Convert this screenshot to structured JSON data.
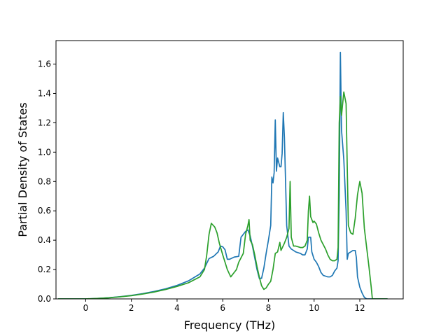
{
  "chart_data": {
    "type": "line",
    "xlabel": "Frequency (THz)",
    "ylabel": "Partial Density of States",
    "xlim": [
      -1.3,
      13.9
    ],
    "ylim": [
      0.0,
      1.76
    ],
    "x_ticks": [
      0,
      2,
      4,
      6,
      8,
      10,
      12
    ],
    "x_tick_labels": [
      "0",
      "2",
      "4",
      "6",
      "8",
      "10",
      "12"
    ],
    "y_ticks": [
      0.0,
      0.2,
      0.4,
      0.6,
      0.8,
      1.0,
      1.2,
      1.4,
      1.6
    ],
    "y_tick_labels": [
      "0.0",
      "0.2",
      "0.4",
      "0.6",
      "0.8",
      "1.0",
      "1.2",
      "1.4",
      "1.6"
    ],
    "grid": false,
    "series": [
      {
        "color": "#1f77b4",
        "points": [
          [
            -1.2,
            0.0
          ],
          [
            0.0,
            0.0
          ],
          [
            0.5,
            0.003
          ],
          [
            1.0,
            0.008
          ],
          [
            1.5,
            0.015
          ],
          [
            2.0,
            0.024
          ],
          [
            2.5,
            0.036
          ],
          [
            3.0,
            0.051
          ],
          [
            3.5,
            0.069
          ],
          [
            4.0,
            0.092
          ],
          [
            4.5,
            0.123
          ],
          [
            5.0,
            0.17
          ],
          [
            5.2,
            0.21
          ],
          [
            5.4,
            0.275
          ],
          [
            5.6,
            0.29
          ],
          [
            5.8,
            0.32
          ],
          [
            5.9,
            0.36
          ],
          [
            6.0,
            0.355
          ],
          [
            6.1,
            0.335
          ],
          [
            6.2,
            0.27
          ],
          [
            6.3,
            0.27
          ],
          [
            6.5,
            0.285
          ],
          [
            6.7,
            0.29
          ],
          [
            6.8,
            0.42
          ],
          [
            6.9,
            0.44
          ],
          [
            7.0,
            0.46
          ],
          [
            7.1,
            0.47
          ],
          [
            7.2,
            0.43
          ],
          [
            7.3,
            0.36
          ],
          [
            7.4,
            0.28
          ],
          [
            7.5,
            0.2
          ],
          [
            7.6,
            0.14
          ],
          [
            7.7,
            0.14
          ],
          [
            7.8,
            0.21
          ],
          [
            7.9,
            0.31
          ],
          [
            8.0,
            0.4
          ],
          [
            8.1,
            0.5
          ],
          [
            8.15,
            0.83
          ],
          [
            8.2,
            0.79
          ],
          [
            8.25,
            0.86
          ],
          [
            8.3,
            1.22
          ],
          [
            8.35,
            0.87
          ],
          [
            8.4,
            0.96
          ],
          [
            8.5,
            0.9
          ],
          [
            8.55,
            0.9
          ],
          [
            8.6,
            0.99
          ],
          [
            8.65,
            1.27
          ],
          [
            8.7,
            1.1
          ],
          [
            8.75,
            0.8
          ],
          [
            8.8,
            0.5
          ],
          [
            8.9,
            0.36
          ],
          [
            9.0,
            0.34
          ],
          [
            9.2,
            0.32
          ],
          [
            9.4,
            0.31
          ],
          [
            9.5,
            0.3
          ],
          [
            9.6,
            0.3
          ],
          [
            9.7,
            0.34
          ],
          [
            9.75,
            0.42
          ],
          [
            9.85,
            0.42
          ],
          [
            9.9,
            0.32
          ],
          [
            10.0,
            0.27
          ],
          [
            10.1,
            0.25
          ],
          [
            10.2,
            0.22
          ],
          [
            10.3,
            0.18
          ],
          [
            10.4,
            0.16
          ],
          [
            10.5,
            0.155
          ],
          [
            10.6,
            0.15
          ],
          [
            10.7,
            0.15
          ],
          [
            10.8,
            0.16
          ],
          [
            10.9,
            0.19
          ],
          [
            11.0,
            0.21
          ],
          [
            11.05,
            0.26
          ],
          [
            11.1,
            0.7
          ],
          [
            11.15,
            1.68
          ],
          [
            11.2,
            1.15
          ],
          [
            11.3,
            0.95
          ],
          [
            11.4,
            0.6
          ],
          [
            11.45,
            0.27
          ],
          [
            11.5,
            0.31
          ],
          [
            11.6,
            0.32
          ],
          [
            11.7,
            0.33
          ],
          [
            11.8,
            0.33
          ],
          [
            11.85,
            0.28
          ],
          [
            11.9,
            0.15
          ],
          [
            12.0,
            0.08
          ],
          [
            12.1,
            0.04
          ],
          [
            12.2,
            0.01
          ],
          [
            12.3,
            0.0
          ],
          [
            13.2,
            0.0
          ]
        ]
      },
      {
        "color": "#2ca02c",
        "points": [
          [
            -1.2,
            0.0
          ],
          [
            0.0,
            0.0
          ],
          [
            0.5,
            0.003
          ],
          [
            1.0,
            0.007
          ],
          [
            1.5,
            0.014
          ],
          [
            2.0,
            0.022
          ],
          [
            2.5,
            0.033
          ],
          [
            3.0,
            0.047
          ],
          [
            3.5,
            0.064
          ],
          [
            4.0,
            0.085
          ],
          [
            4.5,
            0.11
          ],
          [
            5.0,
            0.15
          ],
          [
            5.2,
            0.2
          ],
          [
            5.3,
            0.3
          ],
          [
            5.4,
            0.44
          ],
          [
            5.5,
            0.515
          ],
          [
            5.65,
            0.49
          ],
          [
            5.75,
            0.45
          ],
          [
            5.85,
            0.38
          ],
          [
            6.0,
            0.3
          ],
          [
            6.2,
            0.2
          ],
          [
            6.35,
            0.15
          ],
          [
            6.5,
            0.18
          ],
          [
            6.6,
            0.2
          ],
          [
            6.7,
            0.25
          ],
          [
            6.8,
            0.28
          ],
          [
            6.9,
            0.31
          ],
          [
            7.0,
            0.44
          ],
          [
            7.1,
            0.5
          ],
          [
            7.15,
            0.54
          ],
          [
            7.2,
            0.4
          ],
          [
            7.3,
            0.37
          ],
          [
            7.4,
            0.3
          ],
          [
            7.5,
            0.22
          ],
          [
            7.6,
            0.15
          ],
          [
            7.7,
            0.09
          ],
          [
            7.8,
            0.065
          ],
          [
            7.9,
            0.075
          ],
          [
            8.0,
            0.1
          ],
          [
            8.1,
            0.12
          ],
          [
            8.2,
            0.2
          ],
          [
            8.3,
            0.31
          ],
          [
            8.4,
            0.32
          ],
          [
            8.5,
            0.385
          ],
          [
            8.55,
            0.33
          ],
          [
            8.7,
            0.38
          ],
          [
            8.8,
            0.42
          ],
          [
            8.9,
            0.48
          ],
          [
            8.95,
            0.8
          ],
          [
            9.0,
            0.42
          ],
          [
            9.1,
            0.36
          ],
          [
            9.2,
            0.36
          ],
          [
            9.4,
            0.35
          ],
          [
            9.5,
            0.35
          ],
          [
            9.6,
            0.36
          ],
          [
            9.7,
            0.4
          ],
          [
            9.75,
            0.6
          ],
          [
            9.8,
            0.7
          ],
          [
            9.85,
            0.56
          ],
          [
            9.95,
            0.52
          ],
          [
            10.0,
            0.53
          ],
          [
            10.1,
            0.51
          ],
          [
            10.2,
            0.45
          ],
          [
            10.3,
            0.4
          ],
          [
            10.4,
            0.37
          ],
          [
            10.5,
            0.34
          ],
          [
            10.6,
            0.3
          ],
          [
            10.7,
            0.27
          ],
          [
            10.8,
            0.26
          ],
          [
            10.9,
            0.26
          ],
          [
            11.0,
            0.27
          ],
          [
            11.05,
            0.35
          ],
          [
            11.1,
            1.2
          ],
          [
            11.15,
            1.38
          ],
          [
            11.2,
            1.25
          ],
          [
            11.3,
            1.41
          ],
          [
            11.4,
            1.33
          ],
          [
            11.45,
            0.9
          ],
          [
            11.5,
            0.5
          ],
          [
            11.6,
            0.45
          ],
          [
            11.7,
            0.44
          ],
          [
            11.8,
            0.55
          ],
          [
            11.9,
            0.71
          ],
          [
            12.0,
            0.8
          ],
          [
            12.1,
            0.72
          ],
          [
            12.2,
            0.48
          ],
          [
            12.3,
            0.35
          ],
          [
            12.4,
            0.22
          ],
          [
            12.5,
            0.08
          ],
          [
            12.55,
            0.0
          ],
          [
            13.2,
            0.0
          ]
        ]
      }
    ]
  }
}
